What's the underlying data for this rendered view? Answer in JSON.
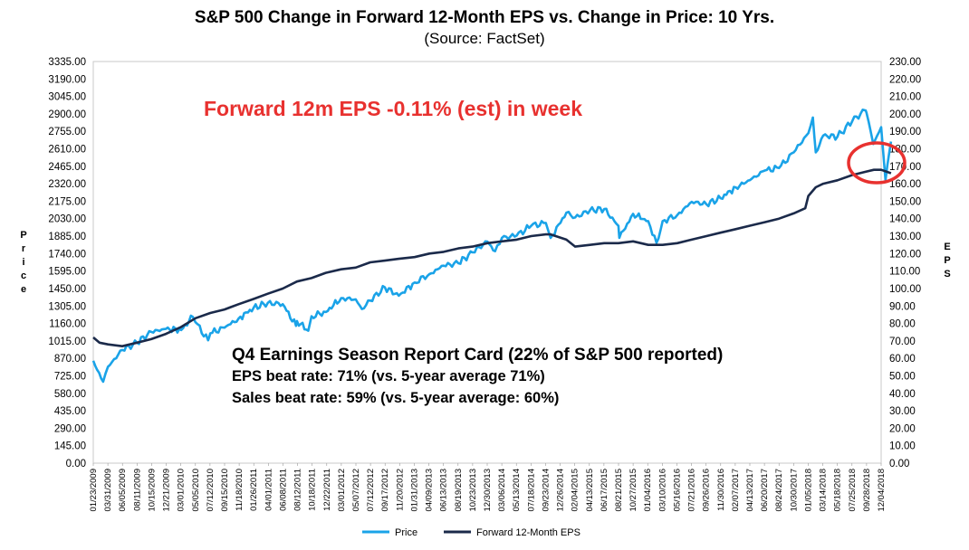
{
  "chart_data": {
    "type": "line",
    "title": "S&P 500 Change in Forward 12-Month EPS vs. Change in Price: 10 Yrs.",
    "subtitle": "(Source: FactSet)",
    "ylabel_left": "Price",
    "ylabel_right": "EPS",
    "ylim_left": [
      0,
      3335
    ],
    "ylim_right": [
      0,
      230
    ],
    "y_ticks_left": [
      "3335.00",
      "3190.00",
      "3045.00",
      "2900.00",
      "2755.00",
      "2610.00",
      "2465.00",
      "2320.00",
      "2175.00",
      "2030.00",
      "1885.00",
      "1740.00",
      "1595.00",
      "1450.00",
      "1305.00",
      "1160.00",
      "1015.00",
      "870.00",
      "725.00",
      "580.00",
      "435.00",
      "290.00",
      "145.00",
      "0.00"
    ],
    "y_ticks_right": [
      "230.00",
      "220.00",
      "210.00",
      "200.00",
      "190.00",
      "180.00",
      "170.00",
      "160.00",
      "150.00",
      "140.00",
      "130.00",
      "120.00",
      "110.00",
      "100.00",
      "90.00",
      "80.00",
      "70.00",
      "60.00",
      "50.00",
      "40.00",
      "30.00",
      "20.00",
      "10.00",
      "0.00"
    ],
    "x_tick_labels": [
      "01/23/2009",
      "03/31/2009",
      "06/05/2009",
      "08/11/2009",
      "10/15/2009",
      "12/21/2009",
      "03/01/2010",
      "05/05/2010",
      "07/12/2010",
      "09/15/2010",
      "11/18/2010",
      "01/26/2011",
      "04/01/2011",
      "06/08/2011",
      "08/12/2011",
      "10/18/2011",
      "12/22/2011",
      "03/01/2012",
      "05/07/2012",
      "07/12/2012",
      "09/17/2012",
      "11/20/2012",
      "01/31/2013",
      "04/09/2013",
      "06/13/2013",
      "08/19/2013",
      "10/23/2013",
      "12/30/2013",
      "03/06/2014",
      "05/13/2014",
      "07/18/2014",
      "09/23/2014",
      "12/26/2014",
      "02/04/2015",
      "04/13/2015",
      "06/17/2015",
      "08/21/2015",
      "10/27/2015",
      "01/04/2016",
      "03/10/2016",
      "05/16/2016",
      "07/21/2016",
      "09/26/2016",
      "11/30/2016",
      "02/07/2017",
      "04/13/2017",
      "06/20/2017",
      "08/24/2017",
      "10/30/2017",
      "01/05/2018",
      "03/14/2018",
      "05/18/2018",
      "07/25/2018",
      "09/28/2018",
      "12/04/2018"
    ],
    "series": [
      {
        "name": "Price",
        "color": "#1aa3e8",
        "axis": "left",
        "x": [
          "01/23/2009",
          "03/09/2009",
          "03/31/2009",
          "06/05/2009",
          "08/11/2009",
          "10/15/2009",
          "12/21/2009",
          "03/01/2010",
          "04/23/2010",
          "05/05/2010",
          "07/02/2010",
          "07/12/2010",
          "09/15/2010",
          "11/18/2010",
          "01/26/2011",
          "04/01/2011",
          "06/08/2011",
          "08/08/2011",
          "08/12/2011",
          "10/03/2011",
          "10/18/2011",
          "12/22/2011",
          "03/01/2012",
          "05/07/2012",
          "06/04/2012",
          "07/12/2012",
          "09/17/2012",
          "11/20/2012",
          "01/31/2013",
          "04/09/2013",
          "06/13/2013",
          "08/19/2013",
          "10/23/2013",
          "12/30/2013",
          "02/03/2014",
          "03/06/2014",
          "05/13/2014",
          "07/18/2014",
          "09/23/2014",
          "10/15/2014",
          "12/26/2014",
          "02/04/2015",
          "04/13/2015",
          "06/17/2015",
          "08/21/2015",
          "08/25/2015",
          "10/27/2015",
          "01/04/2016",
          "02/11/2016",
          "03/10/2016",
          "05/16/2016",
          "07/21/2016",
          "09/26/2016",
          "11/30/2016",
          "02/07/2017",
          "04/13/2017",
          "06/20/2017",
          "08/24/2017",
          "10/30/2017",
          "01/05/2018",
          "01/26/2018",
          "02/08/2018",
          "03/14/2018",
          "05/18/2018",
          "07/25/2018",
          "09/20/2018",
          "09/28/2018",
          "10/29/2018",
          "12/04/2018",
          "12/24/2018",
          "01/18/2019"
        ],
        "values": [
          850,
          676,
          800,
          940,
          1000,
          1090,
          1115,
          1105,
          1215,
          1170,
          1020,
          1078,
          1125,
          1200,
          1290,
          1330,
          1320,
          1140,
          1180,
          1100,
          1220,
          1255,
          1370,
          1360,
          1280,
          1350,
          1460,
          1390,
          1500,
          1570,
          1640,
          1660,
          1750,
          1840,
          1760,
          1870,
          1890,
          1970,
          1995,
          1870,
          2080,
          2040,
          2100,
          2110,
          1970,
          1870,
          2070,
          2010,
          1830,
          2010,
          2060,
          2170,
          2150,
          2200,
          2290,
          2350,
          2430,
          2450,
          2580,
          2740,
          2870,
          2580,
          2720,
          2710,
          2840,
          2930,
          2910,
          2650,
          2790,
          2350,
          2670
        ]
      },
      {
        "name": "Forward 12-Month EPS",
        "color": "#1b2a4a",
        "axis": "right",
        "x": [
          "01/23/2009",
          "02/20/2009",
          "03/31/2009",
          "06/05/2009",
          "08/11/2009",
          "10/15/2009",
          "12/21/2009",
          "03/01/2010",
          "05/05/2010",
          "07/12/2010",
          "09/15/2010",
          "11/18/2010",
          "01/26/2011",
          "04/01/2011",
          "06/08/2011",
          "08/12/2011",
          "10/18/2011",
          "12/22/2011",
          "03/01/2012",
          "05/07/2012",
          "07/12/2012",
          "09/17/2012",
          "11/20/2012",
          "01/31/2013",
          "04/09/2013",
          "06/13/2013",
          "08/19/2013",
          "10/23/2013",
          "12/30/2013",
          "03/06/2014",
          "05/13/2014",
          "07/18/2014",
          "09/23/2014",
          "10/15/2014",
          "12/26/2014",
          "02/04/2015",
          "04/13/2015",
          "06/17/2015",
          "08/21/2015",
          "10/27/2015",
          "01/04/2016",
          "03/10/2016",
          "05/16/2016",
          "07/21/2016",
          "09/26/2016",
          "11/30/2016",
          "02/07/2017",
          "04/13/2017",
          "06/20/2017",
          "08/24/2017",
          "10/30/2017",
          "12/22/2017",
          "01/05/2018",
          "02/08/2018",
          "03/14/2018",
          "05/18/2018",
          "07/25/2018",
          "09/28/2018",
          "11/01/2018",
          "12/04/2018",
          "01/18/2019"
        ],
        "values": [
          72,
          69,
          68,
          67,
          69,
          71,
          74,
          78,
          83,
          86,
          88,
          91,
          94,
          97,
          100,
          104,
          106,
          109,
          111,
          112,
          115,
          116,
          117,
          118,
          120,
          121,
          123,
          124,
          126,
          127,
          128,
          130,
          131,
          131,
          128,
          124,
          125,
          126,
          126,
          127,
          125,
          125,
          126,
          128,
          130,
          132,
          134,
          136,
          138,
          140,
          143,
          146,
          153,
          158,
          160,
          162,
          165,
          167,
          168,
          168,
          166
        ]
      }
    ],
    "annotations": {
      "headline": "Forward 12m EPS -0.11% (est) in week",
      "report_title": "Q4 Earnings Season Report Card (22% of S&P 500 reported)",
      "eps_beat": "EPS beat rate: 71% (vs. 5-year average 71%)",
      "sales_beat": "Sales beat rate: 59% (vs. 5-year average: 60%)"
    },
    "grid": false,
    "legend_position": "bottom",
    "highlight_color": "#e8312f"
  }
}
